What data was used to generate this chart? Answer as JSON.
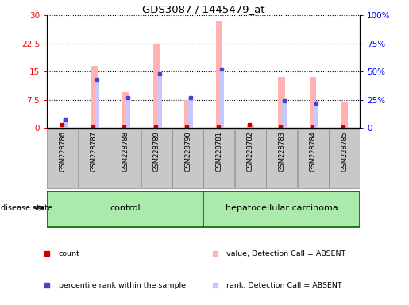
{
  "title": "GDS3087 / 1445479_at",
  "samples": [
    "GSM228786",
    "GSM228787",
    "GSM228788",
    "GSM228789",
    "GSM228790",
    "GSM228781",
    "GSM228782",
    "GSM228783",
    "GSM228784",
    "GSM228785"
  ],
  "groups": [
    "control",
    "control",
    "control",
    "control",
    "control",
    "hepatocellular carcinoma",
    "hepatocellular carcinoma",
    "hepatocellular carcinoma",
    "hepatocellular carcinoma",
    "hepatocellular carcinoma"
  ],
  "value_absent": [
    1.2,
    16.5,
    9.5,
    22.5,
    7.4,
    28.5,
    0.8,
    13.5,
    13.5,
    6.8
  ],
  "rank_absent_pct": [
    8.0,
    43.0,
    27.0,
    48.0,
    27.0,
    52.0,
    null,
    24.0,
    22.0,
    null
  ],
  "count_vals": [
    1.0,
    0.3,
    0.3,
    0.3,
    0.3,
    0.3,
    0.8,
    0.3,
    0.3,
    0.3
  ],
  "rank_present_pct": [
    8.0,
    43.0,
    27.0,
    48.0,
    27.0,
    52.0,
    null,
    24.0,
    22.0,
    null
  ],
  "ylim_left": [
    0,
    30
  ],
  "ylim_right": [
    0,
    100
  ],
  "yticks_left": [
    0,
    7.5,
    15,
    22.5,
    30
  ],
  "yticks_right": [
    0,
    25,
    50,
    75,
    100
  ],
  "ytick_labels_left": [
    "0",
    "7.5",
    "15",
    "22.5",
    "30"
  ],
  "ytick_labels_right": [
    "0",
    "25%",
    "50%",
    "75%",
    "100%"
  ],
  "color_value_absent": "#FFB3B3",
  "color_rank_absent": "#C8C8FF",
  "color_count": "#CC0000",
  "color_rank": "#4444CC",
  "background_color": "#ffffff",
  "grid_color": "#000000",
  "disease_state_label": "disease state",
  "control_label": "control",
  "cancer_label": "hepatocellular carcinoma",
  "legend_labels": [
    "count",
    "percentile rank within the sample",
    "value, Detection Call = ABSENT",
    "rank, Detection Call = ABSENT"
  ],
  "legend_colors": [
    "#CC0000",
    "#4444CC",
    "#FFB3B3",
    "#C8C8FF"
  ]
}
